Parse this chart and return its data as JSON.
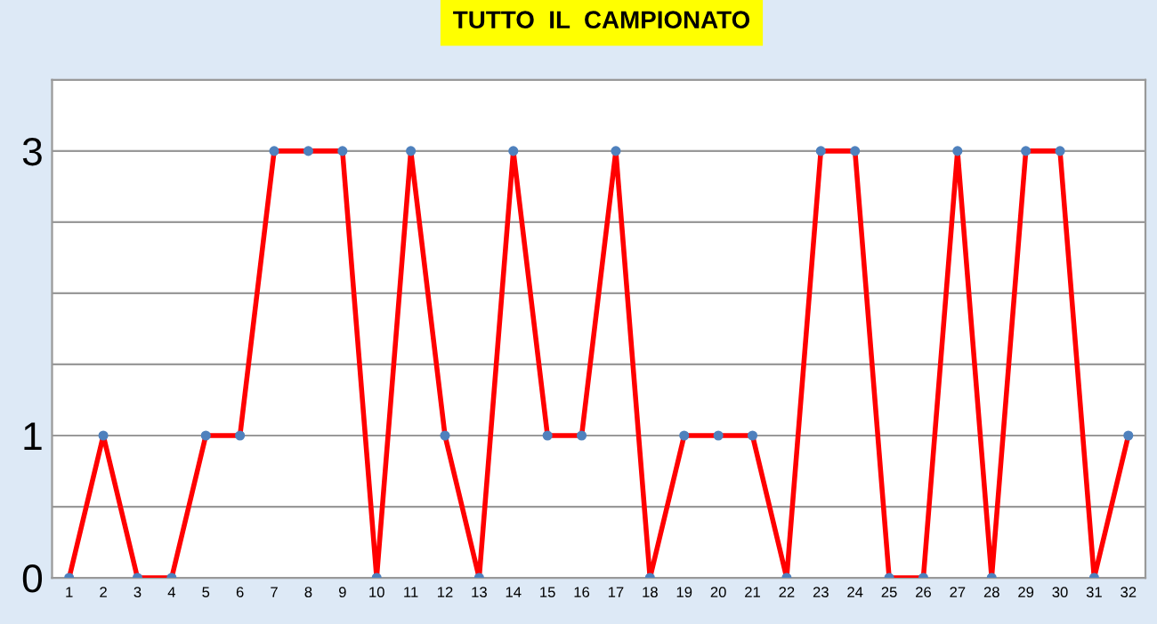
{
  "chart_data": {
    "type": "line",
    "title": "TUTTO  IL  CAMPIONATO",
    "categories": [
      "1",
      "2",
      "3",
      "4",
      "5",
      "6",
      "7",
      "8",
      "9",
      "10",
      "11",
      "12",
      "13",
      "14",
      "15",
      "16",
      "17",
      "18",
      "19",
      "20",
      "21",
      "22",
      "23",
      "24",
      "25",
      "26",
      "27",
      "28",
      "29",
      "30",
      "31",
      "32"
    ],
    "series": [
      {
        "color": "#ff0000",
        "values": [
          0,
          1,
          0,
          0,
          1,
          1,
          3,
          3,
          3,
          0,
          3,
          1,
          0,
          3,
          1,
          1,
          3,
          0,
          1,
          1,
          1,
          0,
          3,
          3,
          0,
          0,
          3,
          0,
          3,
          3,
          0,
          1
        ]
      }
    ],
    "ylim": [
      0,
      3.5
    ],
    "yticks": [
      0,
      {
        "value": 0.5,
        "label": null
      },
      1,
      {
        "value": 1.5,
        "label": null
      },
      {
        "value": 2,
        "label": null
      },
      {
        "value": 2.5,
        "label": null
      },
      3,
      {
        "value": 3.5,
        "label": null
      }
    ],
    "grid": "y",
    "marker": "circle",
    "line_style": "solid"
  }
}
